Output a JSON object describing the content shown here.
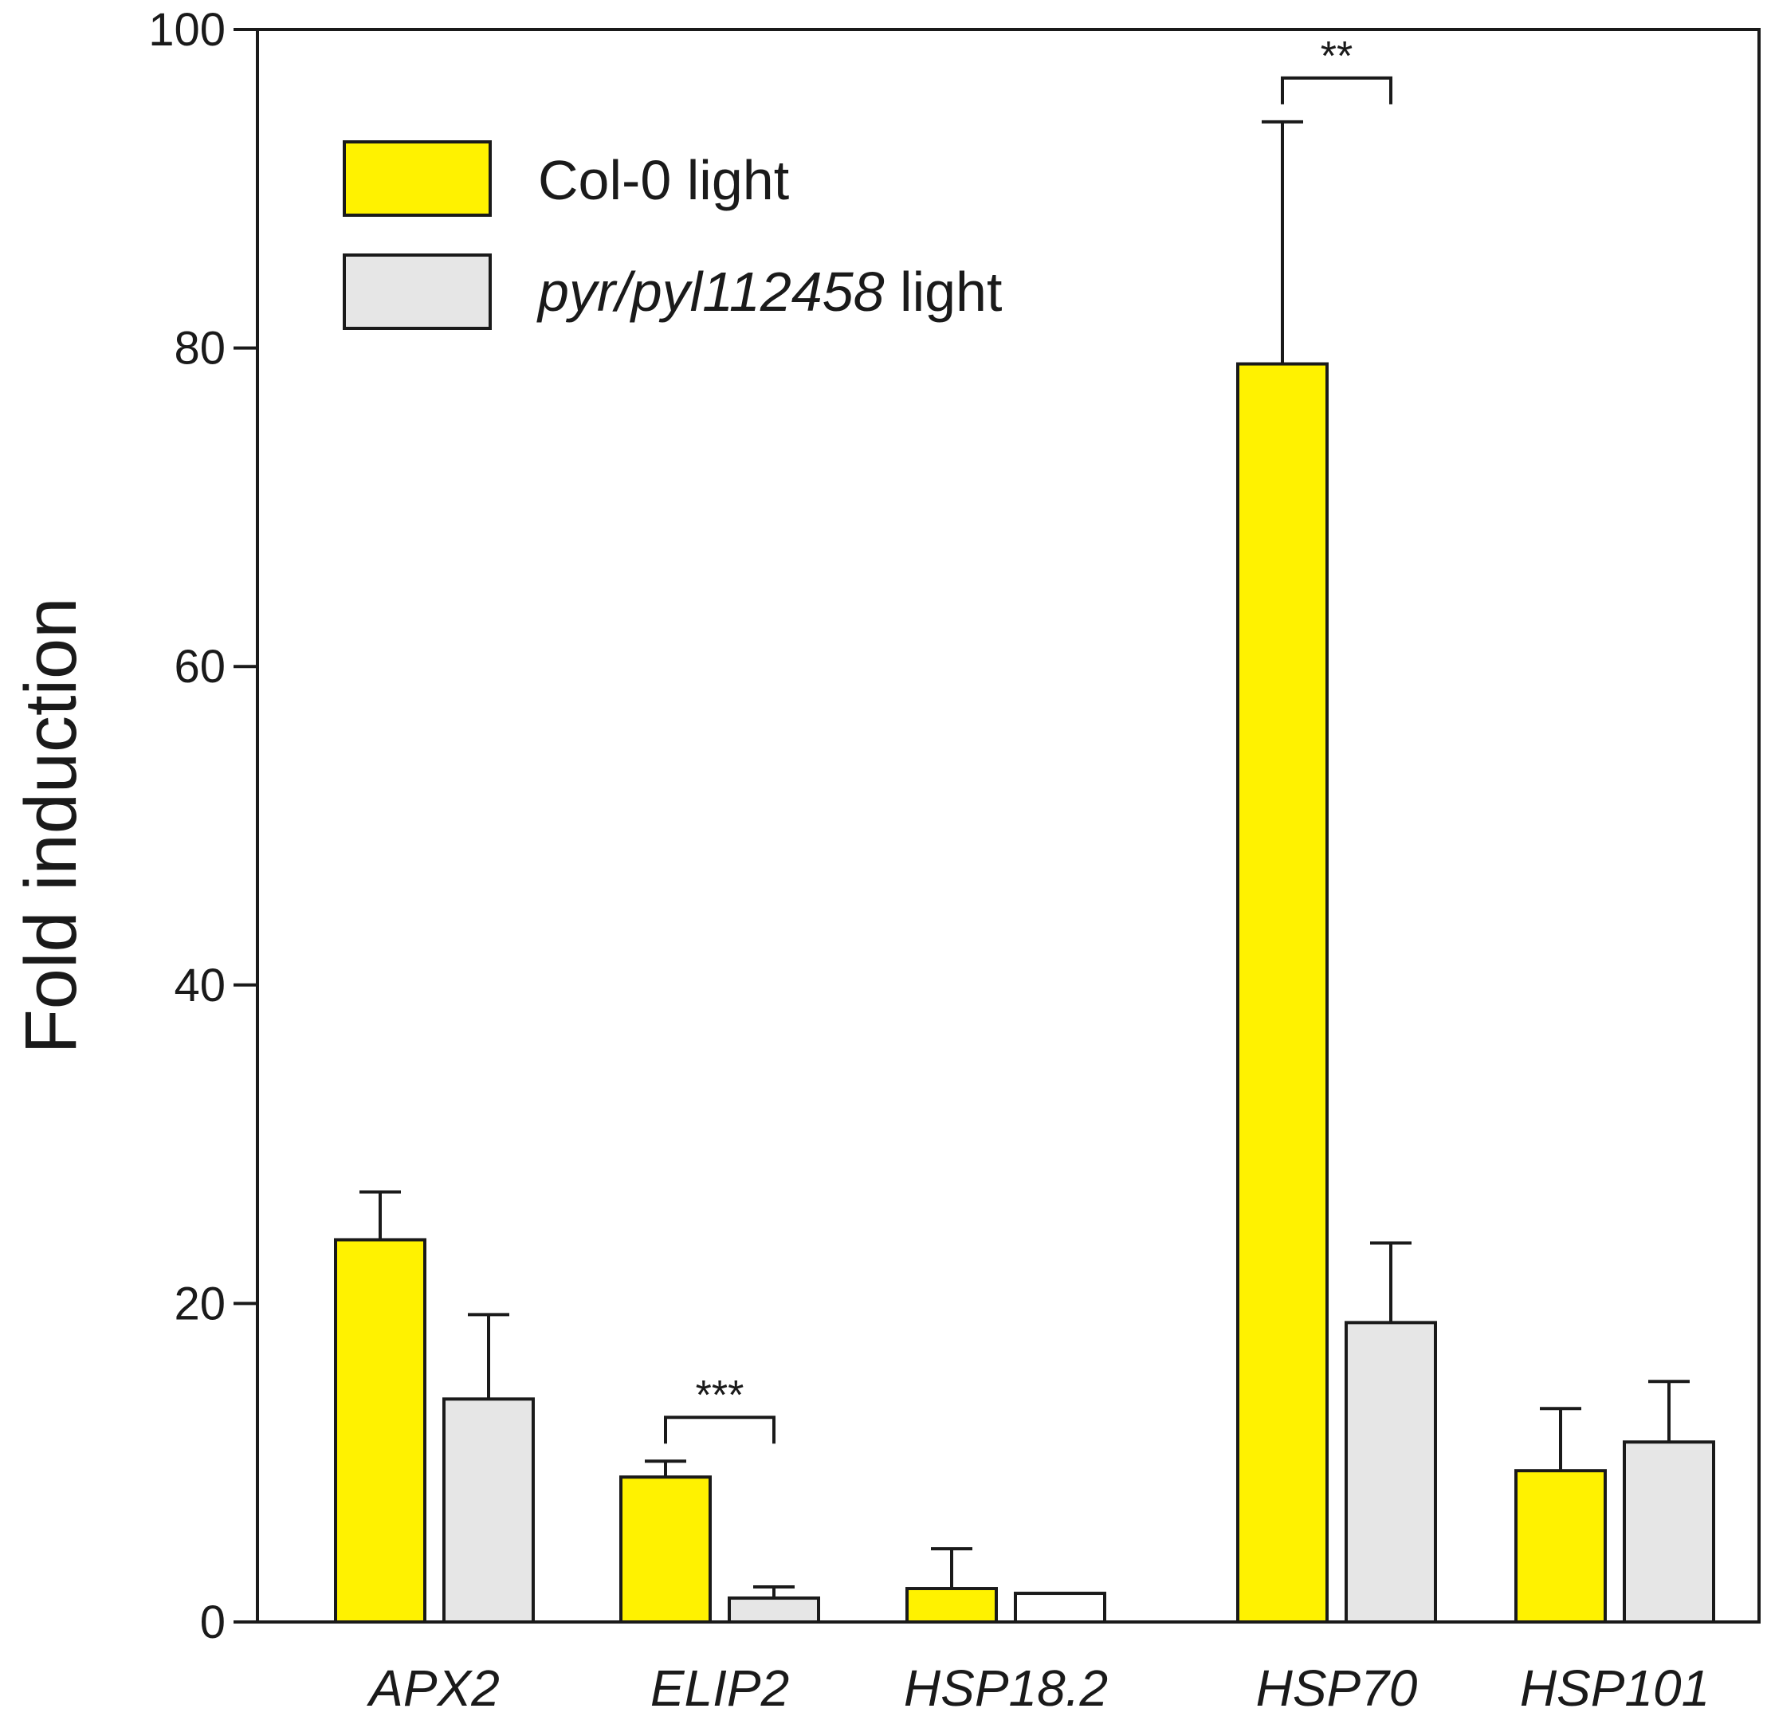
{
  "chart_data": {
    "type": "bar",
    "title": "",
    "xlabel": "",
    "ylabel": "Fold induction",
    "ylim": [
      0,
      100
    ],
    "yticks": [
      0,
      20,
      40,
      60,
      80,
      100
    ],
    "grid": false,
    "legend_position": "top-left",
    "categories": [
      "APX2",
      "ELIP2",
      "HSP18.2",
      "HSP70",
      "HSP101"
    ],
    "series": [
      {
        "name": "Col-0 light",
        "color": "#fff200",
        "values": [
          24,
          9.1,
          2.1,
          79,
          9.5
        ],
        "errors": [
          3.0,
          1.0,
          2.5,
          15.2,
          3.9
        ]
      },
      {
        "name": "pyr/pyl112458 light",
        "name_parts": {
          "italic": "pyr/pyl112458",
          "plain": " light"
        },
        "color": "#e6e6e6",
        "values": [
          14,
          1.5,
          1.8,
          18.8,
          11.3
        ],
        "errors": [
          5.3,
          0.7,
          0,
          5.0,
          3.8
        ]
      }
    ],
    "annotations": [
      {
        "category": "ELIP2",
        "text": "***"
      },
      {
        "category": "HSP70",
        "text": "**"
      }
    ]
  }
}
